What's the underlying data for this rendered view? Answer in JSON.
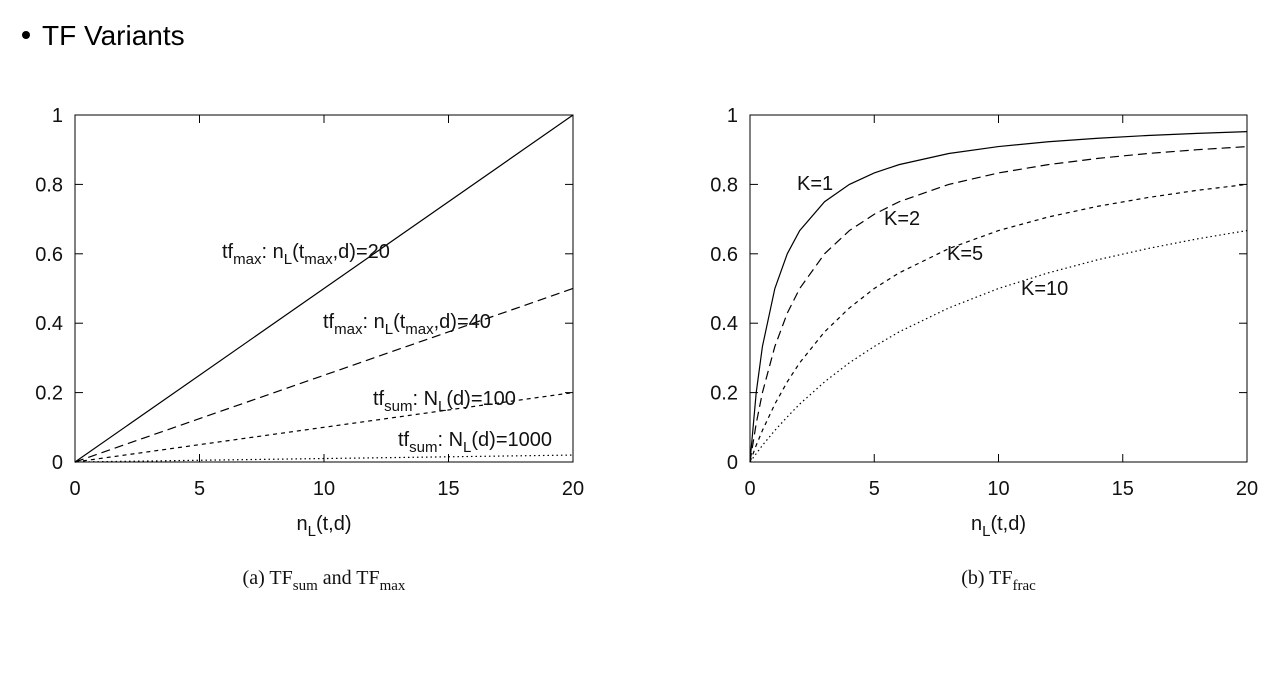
{
  "page_title": "TF Variants",
  "chart_data": [
    {
      "type": "line",
      "x_label": [
        "n",
        "L",
        "(t,d)"
      ],
      "caption": [
        "(a)  TF",
        "sum",
        " and TF",
        "max"
      ],
      "xlim": [
        0,
        20
      ],
      "ylim": [
        0,
        1
      ],
      "xticks": [
        0,
        5,
        10,
        15,
        20
      ],
      "yticks": [
        0,
        0.2,
        0.4,
        0.6,
        0.8,
        1
      ],
      "series": [
        {
          "name": [
            "tf",
            "max",
            ": n",
            "L",
            "(t",
            "max",
            ",d)=20"
          ],
          "color": "#000",
          "dash": "solid",
          "x": [
            0,
            20
          ],
          "values": [
            0,
            1
          ]
        },
        {
          "name": [
            "tf",
            "max",
            ": n",
            "L",
            "(t",
            "max",
            ",d)=40"
          ],
          "color": "#000",
          "dash": "dashed",
          "x": [
            0,
            20
          ],
          "values": [
            0,
            0.5
          ]
        },
        {
          "name": [
            "tf",
            "sum",
            ": N",
            "L",
            "(d)=100"
          ],
          "color": "#000",
          "dash": "short-dashed",
          "x": [
            0,
            20
          ],
          "values": [
            0,
            0.2
          ]
        },
        {
          "name": [
            "tf",
            "sum",
            ": N",
            "L",
            "(d)=1000"
          ],
          "color": "#000",
          "dash": "dotted",
          "x": [
            0,
            20
          ],
          "values": [
            0,
            0.02
          ]
        }
      ]
    },
    {
      "type": "line",
      "x_label": [
        "n",
        "L",
        "(t,d)"
      ],
      "caption": [
        "(b)  TF",
        "frac"
      ],
      "xlim": [
        0,
        20
      ],
      "ylim": [
        0,
        1
      ],
      "xticks": [
        0,
        5,
        10,
        15,
        20
      ],
      "yticks": [
        0,
        0.2,
        0.4,
        0.6,
        0.8,
        1
      ],
      "series": [
        {
          "name": [
            "K=1"
          ],
          "color": "#000",
          "dash": "solid",
          "x": [
            0,
            0.25,
            0.5,
            1,
            1.5,
            2,
            3,
            4,
            5,
            6,
            8,
            10,
            12,
            14,
            16,
            18,
            20
          ],
          "values": [
            0,
            0.2,
            0.333,
            0.5,
            0.6,
            0.667,
            0.75,
            0.8,
            0.833,
            0.857,
            0.889,
            0.909,
            0.923,
            0.933,
            0.941,
            0.947,
            0.952
          ]
        },
        {
          "name": [
            "K=2"
          ],
          "color": "#000",
          "dash": "dashed",
          "x": [
            0,
            0.25,
            0.5,
            1,
            1.5,
            2,
            3,
            4,
            5,
            6,
            8,
            10,
            12,
            14,
            16,
            18,
            20
          ],
          "values": [
            0,
            0.111,
            0.2,
            0.333,
            0.429,
            0.5,
            0.6,
            0.667,
            0.714,
            0.75,
            0.8,
            0.833,
            0.857,
            0.875,
            0.889,
            0.9,
            0.909
          ]
        },
        {
          "name": [
            "K=5"
          ],
          "color": "#000",
          "dash": "short-dashed",
          "x": [
            0,
            0.25,
            0.5,
            1,
            1.5,
            2,
            3,
            4,
            5,
            6,
            8,
            10,
            12,
            14,
            16,
            18,
            20
          ],
          "values": [
            0,
            0.048,
            0.091,
            0.167,
            0.231,
            0.286,
            0.375,
            0.444,
            0.5,
            0.545,
            0.615,
            0.667,
            0.706,
            0.737,
            0.762,
            0.783,
            0.8
          ]
        },
        {
          "name": [
            "K=10"
          ],
          "color": "#000",
          "dash": "dotted",
          "x": [
            0,
            0.25,
            0.5,
            1,
            1.5,
            2,
            3,
            4,
            5,
            6,
            8,
            10,
            12,
            14,
            16,
            18,
            20
          ],
          "values": [
            0,
            0.024,
            0.048,
            0.091,
            0.13,
            0.167,
            0.231,
            0.286,
            0.333,
            0.375,
            0.444,
            0.5,
            0.545,
            0.583,
            0.615,
            0.643,
            0.667
          ]
        }
      ]
    }
  ]
}
